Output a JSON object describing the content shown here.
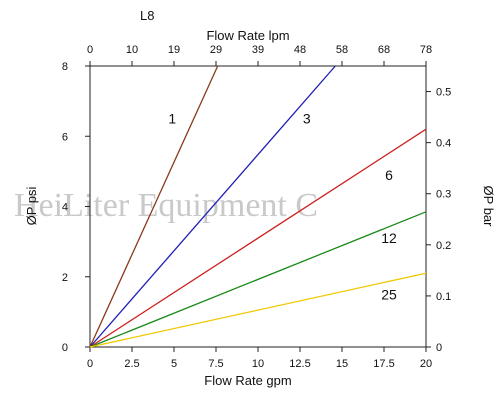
{
  "chart_data": {
    "type": "line",
    "title": "L8",
    "xlabel": "Flow Rate gpm",
    "x2label": "Flow Rate lpm",
    "ylabel": "ØP psi",
    "y2label": "ØP bar",
    "xlim": [
      0,
      20
    ],
    "ylim": [
      0,
      8
    ],
    "y2lim": [
      0,
      0.55
    ],
    "xticks": [
      "0",
      "2.5",
      "5",
      "7.5",
      "10",
      "12.5",
      "15",
      "17.5",
      "20"
    ],
    "x2ticks": [
      "0",
      "10",
      "19",
      "29",
      "39",
      "48",
      "58",
      "68",
      "78"
    ],
    "yticks": [
      "0",
      "2",
      "4",
      "6",
      "8"
    ],
    "y2ticks": [
      "0",
      "0.1",
      "0.2",
      "0.3",
      "0.4",
      "0.5"
    ],
    "grid": false,
    "watermark": "HeiLiter Equipment C",
    "series": [
      {
        "name": "1",
        "color": "#8b3a1a",
        "x": [
          0,
          7.6
        ],
        "y": [
          0,
          8.0
        ]
      },
      {
        "name": "3",
        "color": "#1f1fb4",
        "x": [
          0,
          14.6
        ],
        "y": [
          0,
          8.0
        ]
      },
      {
        "name": "6",
        "color": "#cc2020",
        "x": [
          0,
          20
        ],
        "y": [
          0,
          6.2
        ]
      },
      {
        "name": "12",
        "color": "#1a8a1a",
        "x": [
          0,
          20
        ],
        "y": [
          0,
          3.85
        ]
      },
      {
        "name": "25",
        "color": "#f0c800",
        "x": [
          0,
          20
        ],
        "y": [
          0,
          2.1
        ]
      }
    ],
    "labels": [
      {
        "text": "1",
        "x": 4.9,
        "y": 6.5
      },
      {
        "text": "3",
        "x": 12.9,
        "y": 6.5
      },
      {
        "text": "6",
        "x": 17.8,
        "y": 4.9
      },
      {
        "text": "12",
        "x": 17.8,
        "y": 3.1
      },
      {
        "text": "25",
        "x": 17.8,
        "y": 1.5
      }
    ]
  }
}
